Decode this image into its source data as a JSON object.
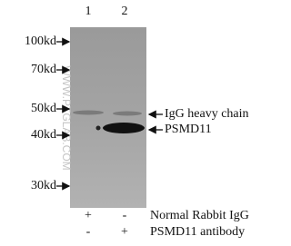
{
  "lanes": [
    "1",
    "2"
  ],
  "markers": [
    "100kd",
    "70kd",
    "50kd",
    "40kd",
    "30kd"
  ],
  "watermark": "WWW.PTGLAB.COM",
  "annotations": [
    "IgG heavy chain",
    "PSMD11"
  ],
  "treatments": [
    {
      "signs": [
        "+",
        "-"
      ],
      "label": "Normal Rabbit IgG"
    },
    {
      "signs": [
        "-",
        "+"
      ],
      "label": "PSMD11 antibody"
    }
  ]
}
